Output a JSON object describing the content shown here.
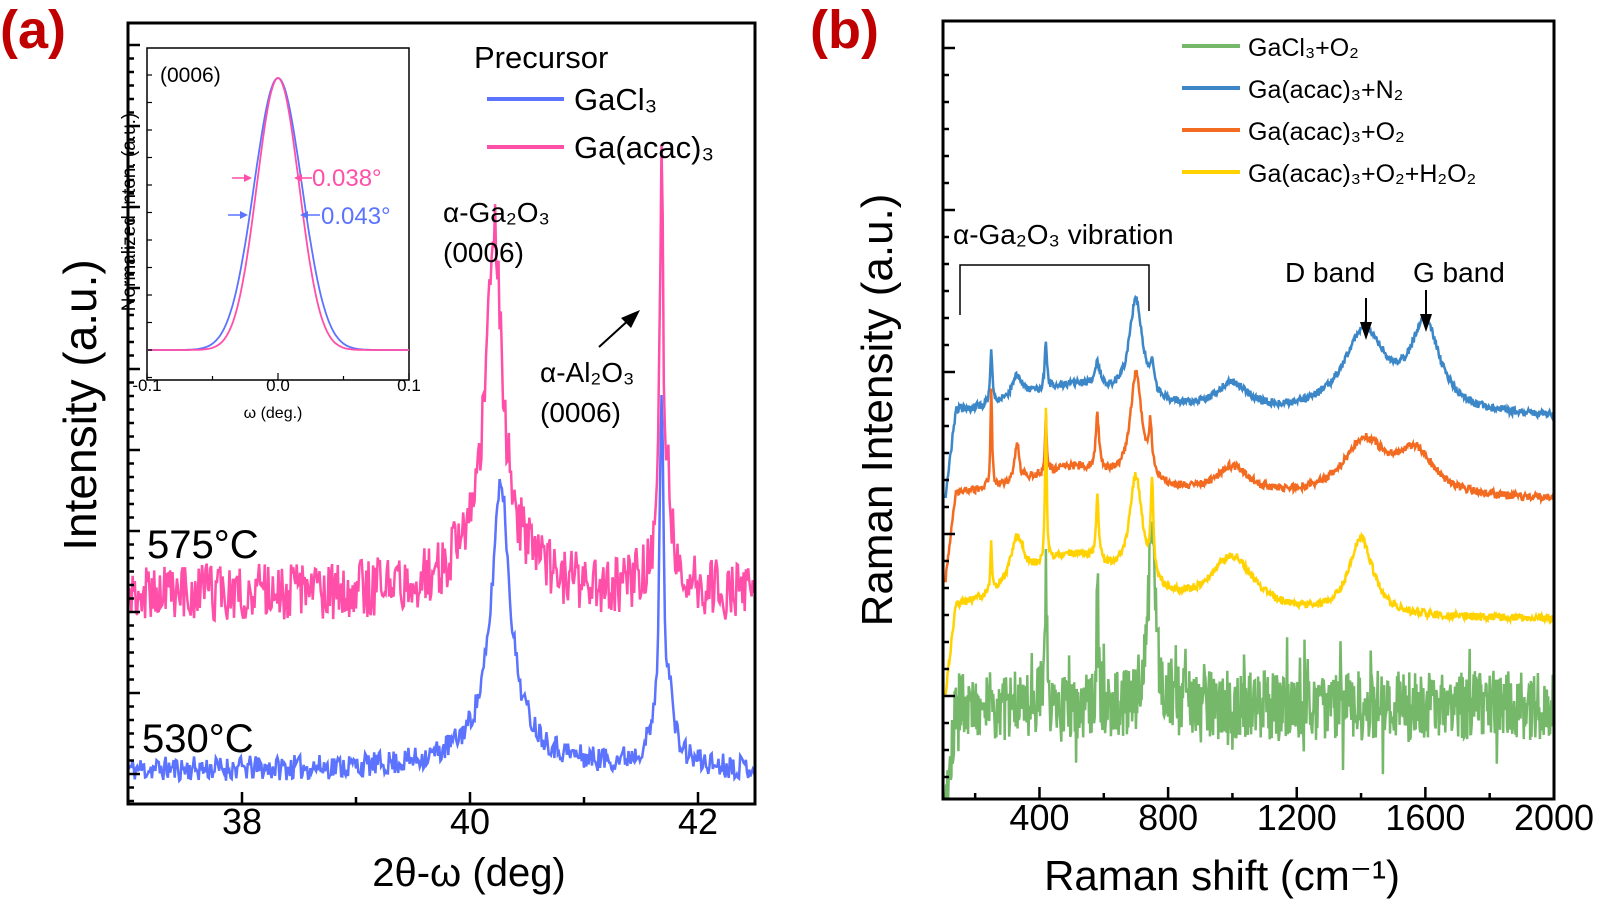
{
  "panel_labels": {
    "a": "(a)",
    "b": "(b)",
    "color": "#c00000"
  },
  "chart_data": [
    {
      "type": "line",
      "panel": "a",
      "xlabel": "2θ-ω (deg)",
      "ylabel": "Intensity (a.u.)",
      "xlim": [
        37,
        42.5
      ],
      "ylim": [
        0,
        100
      ],
      "x_ticks": [
        38,
        40,
        42
      ],
      "legend": {
        "title": "Precursor",
        "placement": "top-right"
      },
      "series": [
        {
          "name": "GaCl₃",
          "color": "#5b73ff",
          "temperature_label": "530°C",
          "baseline": 4.4,
          "noise": 1.6,
          "peaks": [
            [
              40.27,
              32,
              0.09
            ],
            [
              40.27,
              5,
              0.35
            ],
            [
              41.68,
              44,
              0.02
            ],
            [
              41.75,
              6,
              0.03
            ],
            [
              41.68,
              4,
              0.15
            ]
          ]
        },
        {
          "name": "Ga(acac)₃",
          "color": "#ff4fa8",
          "temperature_label": "575°C",
          "baseline": 26.8,
          "noise": 3.8,
          "peaks": [
            [
              40.21,
              41,
              0.08
            ],
            [
              40.2,
              7,
              0.35
            ],
            [
              41.68,
              51,
              0.018
            ],
            [
              41.74,
              8,
              0.03
            ],
            [
              41.68,
              4,
              0.15
            ]
          ]
        }
      ],
      "annotations": [
        {
          "text": "α-Ga₂O₃",
          "text2": "(0006)"
        },
        {
          "text": "α-Al₂O₃",
          "text2": "(0006)"
        }
      ],
      "inset": {
        "type": "line",
        "title": "(0006)",
        "xlabel": "ω (deg.)",
        "ylabel": "Normalized Inten. (a.u.)",
        "xlim": [
          -0.1,
          0.1
        ],
        "x_tick_labels": [
          "-0.1",
          "0.0",
          "0.1"
        ],
        "series": [
          {
            "name": "GaCl₃",
            "color": "#5b73ff",
            "fwhm_deg": 0.043,
            "fwhm_label": "0.043°"
          },
          {
            "name": "Ga(acac)₃",
            "color": "#ff4fa8",
            "fwhm_deg": 0.038,
            "fwhm_label": "0.038°"
          }
        ]
      }
    },
    {
      "type": "line",
      "panel": "b",
      "xlabel": "Raman shift (cm⁻¹)",
      "ylabel": "Raman Intensity (a.u.)",
      "xlim": [
        100,
        2000
      ],
      "ylim": [
        0,
        100
      ],
      "x_ticks": [
        400,
        800,
        1200,
        1600,
        2000
      ],
      "legend": {
        "placement": "top-right"
      },
      "series": [
        {
          "name": "GaCl₃+O₂",
          "color": "#76b86a",
          "baseline": 12,
          "noise": 4.5,
          "peaks": [
            [
              420,
              16,
              5
            ],
            [
              580,
              19,
              3
            ],
            [
              750,
              25,
              12
            ]
          ]
        },
        {
          "name": "Ga(acac)₃+N₂",
          "color": "#3c87c8",
          "baseline": 49,
          "noise": 0.5,
          "peaks": [
            [
              700,
              13,
              25
            ],
            [
              250,
              7,
              4
            ],
            [
              420,
              6,
              4
            ],
            [
              330,
              3,
              20
            ],
            [
              580,
              3,
              10
            ],
            [
              750,
              3,
              8
            ],
            [
              1000,
              3.5,
              60
            ],
            [
              1410,
              10.5,
              80
            ],
            [
              1600,
              11,
              55
            ],
            [
              500,
              4,
              200
            ]
          ]
        },
        {
          "name": "Ga(acac)₃+O₂",
          "color": "#f26b21",
          "baseline": 38.4,
          "noise": 0.5,
          "peaks": [
            [
              700,
              14,
              22
            ],
            [
              250,
              13,
              3
            ],
            [
              420,
              7,
              3
            ],
            [
              330,
              5,
              8
            ],
            [
              580,
              7,
              6
            ],
            [
              745,
              6,
              6
            ],
            [
              1000,
              3.5,
              60
            ],
            [
              1410,
              7,
              80
            ],
            [
              1570,
              5.5,
              70
            ],
            [
              500,
              4,
              200
            ]
          ]
        },
        {
          "name": "Ga(acac)₃+O₂+H₂O₂",
          "color": "#ffd200",
          "baseline": 23,
          "noise": 0.5,
          "peaks": [
            [
              700,
              14,
              25
            ],
            [
              420,
              20,
              3
            ],
            [
              250,
              6,
              3
            ],
            [
              330,
              6,
              25
            ],
            [
              580,
              8,
              5
            ],
            [
              750,
              12,
              5
            ],
            [
              1000,
              7,
              80
            ],
            [
              1400,
              10,
              45
            ],
            [
              500,
              8,
              200
            ]
          ]
        }
      ],
      "annotations": [
        {
          "text": "α-Ga₂O₃ vibration"
        },
        {
          "text": "D band"
        },
        {
          "text": "G band"
        }
      ]
    }
  ]
}
